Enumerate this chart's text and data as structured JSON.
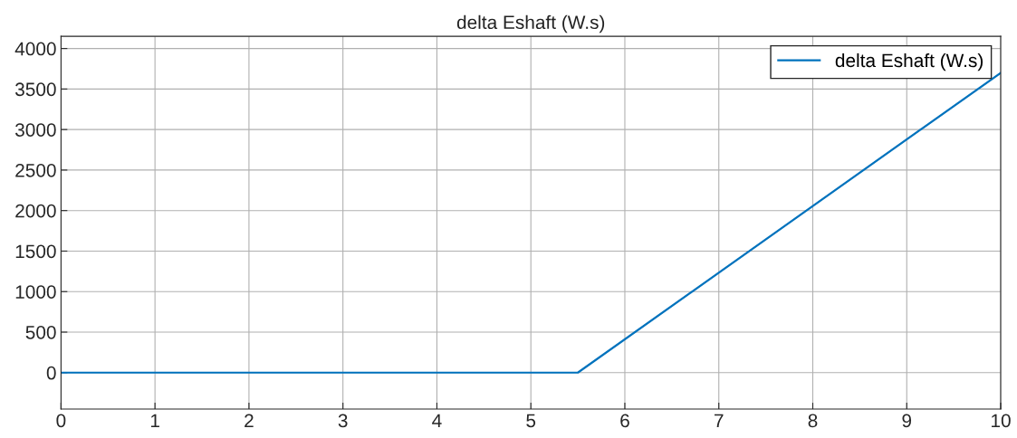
{
  "chart_data": {
    "type": "line",
    "title": "delta Eshaft (W.s)",
    "series": [
      {
        "name": "delta Eshaft (W.s)",
        "color": "#0072bd",
        "x": [
          0,
          5.5,
          10
        ],
        "values": [
          0,
          0,
          3700
        ]
      }
    ],
    "xlim": [
      0,
      10
    ],
    "xticks": [
      0,
      1,
      2,
      3,
      4,
      5,
      6,
      7,
      8,
      9,
      10
    ],
    "ylim": [
      -450,
      4150
    ],
    "yticks": [
      0,
      500,
      1000,
      1500,
      2000,
      2500,
      3000,
      3500,
      4000
    ],
    "grid": true,
    "legend": "top right",
    "marker": "none",
    "line_style": "solid"
  }
}
